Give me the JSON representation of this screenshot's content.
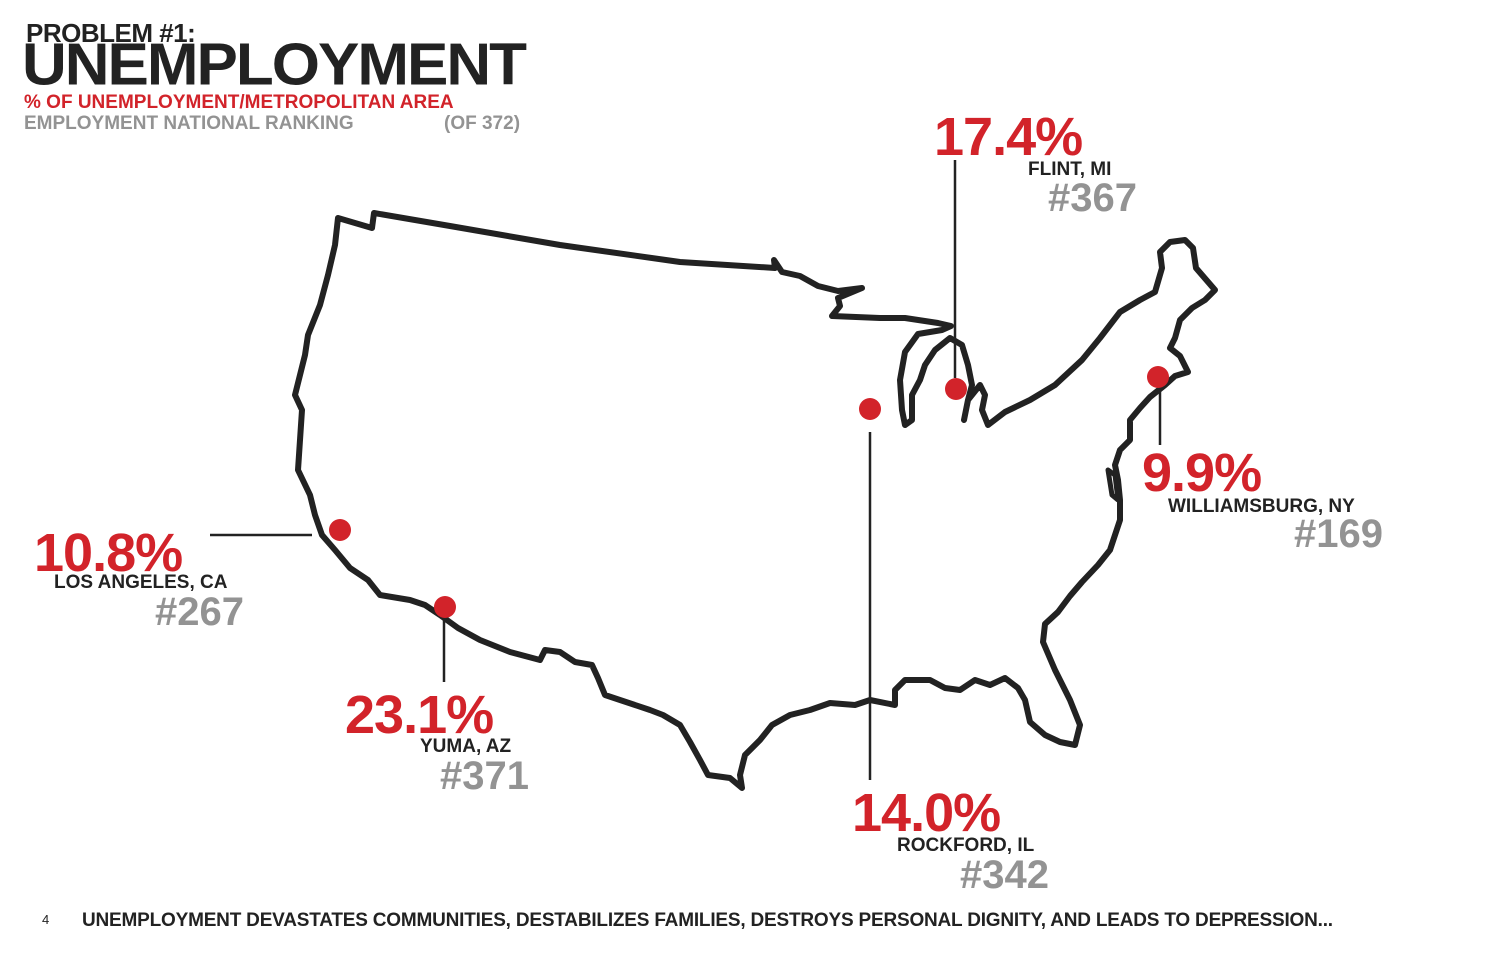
{
  "header": {
    "problem": "PROBLEM #1:",
    "title": "UNEMPLOYMENT",
    "subtitle_red": "% OF UNEMPLOYMENT/METROPOLITAN AREA",
    "subtitle_gray": "EMPLOYMENT NATIONAL RANKING",
    "subtitle_gray_note": "(OF 372)"
  },
  "colors": {
    "accent": "#d2232a",
    "gray": "#939393",
    "ink": "#222222"
  },
  "locations": [
    {
      "id": "flint",
      "percent": "17.4%",
      "city": "FLINT, MI",
      "rank": "#367"
    },
    {
      "id": "williamsburg",
      "percent": "9.9%",
      "city": "WILLIAMSBURG, NY",
      "rank": "#169"
    },
    {
      "id": "los-angeles",
      "percent": "10.8%",
      "city": "LOS ANGELES, CA",
      "rank": "#267"
    },
    {
      "id": "yuma",
      "percent": "23.1%",
      "city": "YUMA, AZ",
      "rank": "#371"
    },
    {
      "id": "rockford",
      "percent": "14.0%",
      "city": "ROCKFORD, IL",
      "rank": "#342"
    }
  ],
  "footer": {
    "page_number": "4",
    "text": "UNEMPLOYMENT DEVASTATES COMMUNITIES, DESTABILIZES FAMILIES, DESTROYS PERSONAL DIGNITY, AND LEADS TO DEPRESSION..."
  }
}
